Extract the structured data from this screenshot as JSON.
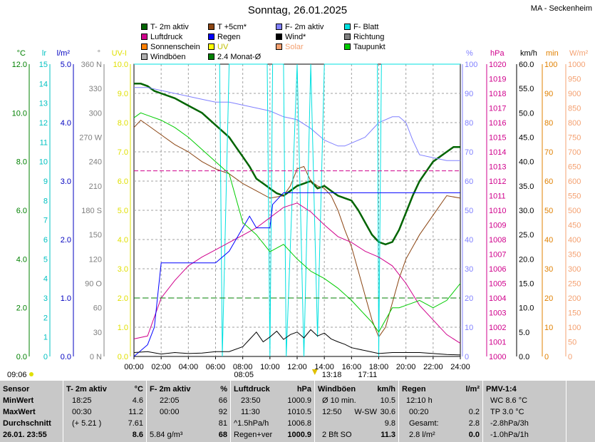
{
  "header": {
    "title": "Sonntag, 26.01.2025",
    "station": "MA - Seckenheim"
  },
  "legend": [
    {
      "label": "T- 2m aktiv",
      "color": "#006400"
    },
    {
      "label": "T +5cm*",
      "color": "#8b4513"
    },
    {
      "label": "F- 2m aktiv",
      "color": "#8080ff"
    },
    {
      "label": "F- Blatt",
      "color": "#00e0e0"
    },
    {
      "label": "Luftdruck",
      "color": "#d0008c"
    },
    {
      "label": "Regen",
      "color": "#0000ff"
    },
    {
      "label": "Wind*",
      "color": "#000000"
    },
    {
      "label": "Richtung",
      "color": "#808080"
    },
    {
      "label": "Sonnenschein",
      "color": "#ff8000"
    },
    {
      "label": "UV",
      "color": "#ffff00"
    },
    {
      "label": "Solar",
      "color": "#f4a070"
    },
    {
      "label": "Taupunkt",
      "color": "#00cc00"
    },
    {
      "label": "Windböen",
      "color": "#b0b0b0"
    },
    {
      "label": "2.4 Monat-Ø",
      "color": "#008000"
    }
  ],
  "axes_left": [
    {
      "unit": "°C",
      "color": "#008000",
      "ticks": [
        "0.0",
        "2.0",
        "4.0",
        "6.0",
        "8.0",
        "10.0",
        "12.0"
      ]
    },
    {
      "unit": "lr",
      "color": "#00c0c0",
      "ticks": [
        "0",
        "1",
        "2",
        "3",
        "4",
        "5",
        "6",
        "7",
        "8",
        "9",
        "10",
        "11",
        "12",
        "13",
        "14",
        "15"
      ]
    },
    {
      "unit": "l/m²",
      "color": "#0000c0",
      "ticks": [
        "0.0",
        "1.0",
        "2.0",
        "3.0",
        "4.0",
        "5.0"
      ]
    },
    {
      "unit": "°",
      "color": "#808080",
      "ticks": [
        "0 N",
        "30",
        "60",
        "90 O",
        "120",
        "150",
        "180 S",
        "210",
        "240",
        "270 W",
        "300",
        "330",
        "360 N"
      ]
    },
    {
      "unit": "UV-I",
      "color": "#e0e000",
      "ticks": [
        "0.0",
        "1.0",
        "2.0",
        "3.0",
        "4.0",
        "5.0",
        "6.0",
        "7.0",
        "8.0",
        "9.0",
        "10.0"
      ]
    }
  ],
  "axes_right": [
    {
      "unit": "%",
      "color": "#8080ff",
      "ticks": [
        "0",
        "10",
        "20",
        "30",
        "40",
        "50",
        "60",
        "70",
        "80",
        "90",
        "100"
      ]
    },
    {
      "unit": "hPa",
      "color": "#d0008c",
      "ticks": [
        "1000",
        "1001",
        "1002",
        "1003",
        "1004",
        "1005",
        "1006",
        "1007",
        "1008",
        "1009",
        "1010",
        "1011",
        "1012",
        "1013",
        "1014",
        "1015",
        "1016",
        "1017",
        "1018",
        "1019",
        "1020"
      ]
    },
    {
      "unit": "km/h",
      "color": "#000000",
      "ticks": [
        "0.0",
        "5.0",
        "10.0",
        "15.0",
        "20.0",
        "25.0",
        "30.0",
        "35.0",
        "40.0",
        "45.0",
        "50.0",
        "55.0",
        "60.0"
      ]
    },
    {
      "unit": "min",
      "color": "#e08000",
      "ticks": [
        "0",
        "10",
        "20",
        "30",
        "40",
        "50",
        "60",
        "70",
        "80",
        "90",
        "100"
      ]
    },
    {
      "unit": "W/m²",
      "color": "#f4a070",
      "ticks": [
        "0",
        "50",
        "100",
        "150",
        "200",
        "250",
        "300",
        "350",
        "400",
        "450",
        "500",
        "550",
        "600",
        "650",
        "700",
        "750",
        "800",
        "850",
        "900",
        "950",
        "1000"
      ]
    }
  ],
  "time_ticks": [
    "00:00",
    "02:00",
    "04:00",
    "06:00",
    "08:00",
    "10:00",
    "12:00",
    "14:00",
    "16:00",
    "18:00",
    "20:00",
    "22:00",
    "24:00"
  ],
  "markers": {
    "sunrise": "08:05",
    "sunset": "17:11",
    "noon": "13:18",
    "left_label": "09:06"
  },
  "chart_data": {
    "type": "line",
    "title": "Sonntag, 26.01.2025",
    "x_unit": "hours",
    "xlim": [
      0,
      24
    ],
    "series": [
      {
        "name": "T- 2m aktiv",
        "unit": "°C",
        "x": [
          0,
          0.5,
          1,
          1.5,
          2,
          3,
          4,
          5,
          6,
          7,
          7.5,
          8,
          8.5,
          9,
          9.5,
          10,
          10.5,
          11,
          11.5,
          12,
          12.5,
          13,
          13.5,
          14,
          14.5,
          15,
          15.5,
          16,
          16.5,
          17,
          17.5,
          18,
          18.5,
          19,
          19.5,
          20,
          20.5,
          21,
          21.5,
          22,
          22.5,
          23,
          23.5,
          24
        ],
        "y": [
          11.2,
          11.2,
          11.1,
          10.9,
          10.8,
          10.6,
          10.3,
          10.0,
          9.5,
          9.0,
          8.6,
          8.2,
          7.8,
          7.3,
          7.1,
          6.9,
          6.7,
          6.6,
          6.8,
          7.0,
          7.1,
          7.2,
          6.9,
          7.0,
          6.8,
          6.6,
          6.5,
          6.4,
          6.0,
          5.5,
          5.0,
          4.7,
          4.6,
          4.7,
          5.2,
          5.9,
          6.6,
          7.2,
          7.6,
          8.0,
          8.2,
          8.4,
          8.6,
          8.6
        ]
      },
      {
        "name": "T +5cm*",
        "unit": "°C",
        "x": [
          0,
          0.5,
          1,
          2,
          3,
          4,
          5,
          6,
          7,
          8,
          9,
          10,
          11,
          11.5,
          12,
          12.5,
          13,
          13.5,
          14,
          14.5,
          15,
          15.5,
          16,
          16.5,
          17,
          17.5,
          18,
          18.5,
          19,
          19.5,
          20,
          21,
          22,
          23,
          24
        ],
        "y": [
          9.4,
          9.7,
          9.5,
          9.1,
          8.7,
          8.4,
          8.0,
          7.7,
          7.5,
          7.1,
          6.8,
          6.5,
          6.6,
          7.0,
          7.7,
          7.8,
          7.2,
          7.0,
          6.9,
          6.6,
          6.0,
          5.2,
          4.5,
          3.5,
          2.5,
          1.5,
          0.8,
          1.2,
          2.2,
          3.2,
          4.0,
          5.0,
          5.8,
          6.6,
          6.5
        ]
      },
      {
        "name": "F- 2m aktiv",
        "unit": "%",
        "x": [
          0,
          1,
          2,
          3,
          4,
          5,
          6,
          7,
          8,
          9,
          10,
          11,
          12,
          13,
          14,
          14.5,
          15,
          15.5,
          16,
          17,
          18,
          19,
          19.5,
          20,
          20.5,
          21,
          22,
          23,
          24
        ],
        "y": [
          92,
          92,
          91,
          90,
          89,
          88,
          87,
          87,
          86,
          85,
          84,
          82,
          81,
          78,
          74,
          73,
          72,
          72,
          73,
          75,
          80,
          82,
          82,
          80,
          74,
          69,
          68,
          67,
          67
        ]
      },
      {
        "name": "F- Blatt",
        "unit": "lr",
        "x": [
          0,
          6.3,
          6.5,
          7,
          7.5,
          8,
          9.8,
          10,
          10.2,
          11,
          11.2,
          12,
          12.5,
          13,
          13.5,
          14,
          17.9,
          18,
          18.2,
          24
        ],
        "y": [
          15,
          15,
          0,
          15,
          15,
          15,
          15,
          0,
          15,
          15,
          0,
          15,
          0,
          15,
          1,
          15,
          15,
          0,
          15,
          15
        ]
      },
      {
        "name": "Luftdruck",
        "unit": "hPa",
        "x": [
          0,
          1,
          2,
          3,
          4,
          5,
          6,
          7,
          8,
          9,
          10,
          11,
          12,
          13,
          14,
          15,
          16,
          17,
          18,
          19,
          20,
          21,
          22,
          23,
          24
        ],
        "y": [
          1001.2,
          1001.4,
          1004.0,
          1005.2,
          1006.2,
          1006.8,
          1007.3,
          1007.8,
          1008.3,
          1008.8,
          1009.5,
          1010.2,
          1010.5,
          1009.9,
          1009.0,
          1008.2,
          1007.8,
          1007.2,
          1006.8,
          1006.2,
          1005.0,
          1003.5,
          1002.5,
          1001.5,
          1000.9
        ]
      },
      {
        "name": "Regen",
        "unit": "l/m²",
        "x": [
          0,
          1,
          1.5,
          2,
          6,
          7,
          7.5,
          8,
          8.5,
          9,
          9.5,
          10,
          10.2,
          11,
          12,
          14,
          16,
          18,
          20,
          22,
          24
        ],
        "y": [
          0,
          0.2,
          0.5,
          1.6,
          1.6,
          1.8,
          2.0,
          2.2,
          2.4,
          2.2,
          2.2,
          2.2,
          2.6,
          2.8,
          2.8,
          2.8,
          2.8,
          2.8,
          2.8,
          2.8,
          2.8
        ]
      },
      {
        "name": "Wind*",
        "unit": "km/h",
        "x": [
          0,
          1,
          2,
          3,
          4,
          5,
          6,
          7,
          8,
          8.5,
          9,
          9.5,
          10,
          10.5,
          11,
          11.5,
          12,
          12.5,
          13,
          13.5,
          14,
          14.5,
          15,
          15.5,
          16,
          17,
          18,
          19,
          20,
          21,
          22,
          23,
          24
        ],
        "y": [
          0.8,
          1.0,
          0.5,
          0.8,
          0.6,
          0.7,
          1.0,
          1.0,
          2.0,
          3.5,
          5.0,
          3.0,
          4.0,
          5.2,
          3.5,
          4.5,
          5.0,
          3.8,
          5.5,
          4.2,
          4.8,
          3.6,
          3.0,
          2.5,
          1.8,
          1.2,
          0.6,
          0.8,
          0.8,
          0.8,
          0.6,
          0.4,
          0.3
        ]
      },
      {
        "name": "Taupunkt",
        "unit": "°C",
        "x": [
          0,
          0.5,
          1,
          2,
          3,
          4,
          5,
          6,
          7,
          8,
          9,
          10,
          11,
          12,
          13,
          14,
          15,
          16,
          17,
          17.5,
          18,
          18.5,
          19,
          19.5,
          20,
          21,
          22,
          23,
          24
        ],
        "y": [
          9.8,
          10.0,
          9.9,
          9.7,
          9.4,
          9.0,
          8.5,
          8.0,
          7.5,
          5.5,
          5.0,
          4.3,
          4.6,
          4.0,
          3.5,
          3.2,
          2.8,
          2.3,
          1.7,
          1.4,
          1.0,
          1.5,
          2.0,
          2.0,
          2.1,
          2.3,
          2.0,
          2.3,
          3.0
        ]
      },
      {
        "name": "2.4 Monat-Ø",
        "unit": "°C",
        "x": [
          0,
          24
        ],
        "y": [
          2.4,
          2.4
        ]
      }
    ]
  },
  "stats": {
    "sensor": {
      "h": "Sensor",
      "r1": "MinWert",
      "r2": "MaxWert",
      "r3": "Durchschnitt",
      "r4": "26.01. 23:55"
    },
    "temp": {
      "h": "T- 2m aktiv",
      "u": "°C",
      "r1t": "18:25",
      "r1v": "4.6",
      "r2t": "00:30",
      "r2v": "11.2",
      "r3t": "(+ 5.21 )",
      "r3v": "7.61",
      "r4v": "8.6"
    },
    "hum": {
      "h": "F- 2m aktiv",
      "u": "%",
      "r1t": "22:05",
      "r1v": "66",
      "r2t": "00:00",
      "r2v": "92",
      "r3v": "81",
      "r4t": "5.84 g/m³",
      "r4v": "68"
    },
    "press": {
      "h": "Luftdruck",
      "u": "hPa",
      "r1t": "23:50",
      "r1v": "1000.9",
      "r2t": "11:30",
      "r2v": "1010.5",
      "r3t": "^1.5hPa/h",
      "r3v": "1006.8",
      "r4t": "Regen+ver",
      "r4v": "1000.9"
    },
    "wind": {
      "h": "Windböen",
      "u": "km/h",
      "r1t": "Ø 10 min.",
      "r1v": "10.5",
      "r2t": "12:50",
      "r2m": "W-SW",
      "r2v": "30.6",
      "r3v": "9.8",
      "r4t": "2 Bft SO",
      "r4v": "11.3"
    },
    "rain": {
      "h": "Regen",
      "u": "l/m²",
      "r1t": "12:10 h",
      "r2t": "00:20",
      "r2v": "0.2",
      "r3t": "Gesamt:",
      "r3v": "2.8",
      "r4t": "2.8 l/m²",
      "r4v": "0.0"
    },
    "pmv": {
      "h": "PMV-1:4",
      "r1": "WC 8.6 °C",
      "r2": "TP 3.0 °C",
      "r3": "-2.8hPa/3h",
      "r4": "-1.0hPa/1h"
    }
  }
}
